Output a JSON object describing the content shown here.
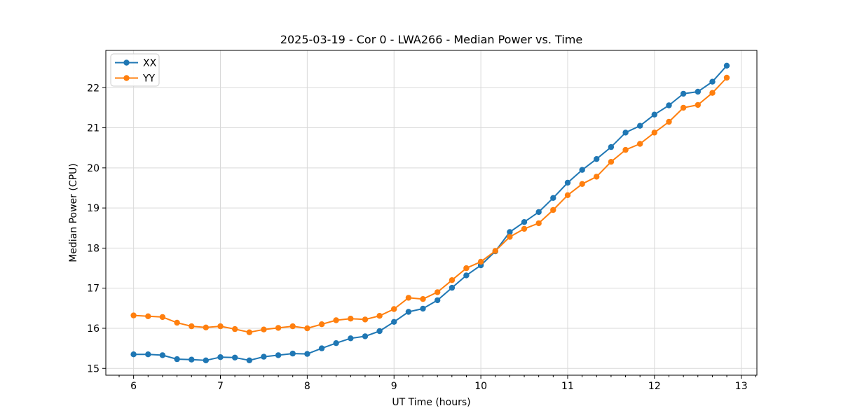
{
  "figure": {
    "background": "#ffffff",
    "frame_color": "#000000",
    "grid_color": "#d9d9d9",
    "tick_color": "#000000"
  },
  "chart_data": {
    "type": "line",
    "title": "2025-03-19 - Cor 0 - LWA266 - Median Power vs. Time",
    "xlabel": "UT Time (hours)",
    "ylabel": "Median Power (CPU)",
    "xlim": [
      5.68,
      13.18
    ],
    "ylim": [
      14.83,
      22.93
    ],
    "xticks": [
      6,
      7,
      8,
      9,
      10,
      11,
      12,
      13
    ],
    "yticks": [
      15,
      16,
      17,
      18,
      19,
      20,
      21,
      22
    ],
    "x_minor_step": 0.166667,
    "grid": true,
    "legend_position": "upper-left",
    "marker": "circle",
    "x": [
      6.0,
      6.167,
      6.333,
      6.5,
      6.667,
      6.833,
      7.0,
      7.167,
      7.333,
      7.5,
      7.667,
      7.833,
      8.0,
      8.167,
      8.333,
      8.5,
      8.667,
      8.833,
      9.0,
      9.167,
      9.333,
      9.5,
      9.667,
      9.833,
      10.0,
      10.167,
      10.333,
      10.5,
      10.667,
      10.833,
      11.0,
      11.167,
      11.333,
      11.5,
      11.667,
      11.833,
      12.0,
      12.167,
      12.333,
      12.5,
      12.667,
      12.833
    ],
    "series": [
      {
        "name": "XX",
        "color": "#1f77b4",
        "values": [
          15.35,
          15.35,
          15.33,
          15.23,
          15.22,
          15.2,
          15.28,
          15.27,
          15.2,
          15.29,
          15.33,
          15.37,
          15.36,
          15.5,
          15.63,
          15.75,
          15.8,
          15.93,
          16.16,
          16.41,
          16.49,
          16.7,
          17.01,
          17.32,
          17.57,
          17.92,
          18.4,
          18.65,
          18.9,
          19.25,
          19.63,
          19.95,
          20.22,
          20.52,
          20.88,
          21.05,
          21.33,
          21.56,
          21.85,
          21.9,
          22.15,
          22.55
        ]
      },
      {
        "name": "YY",
        "color": "#ff7f0e",
        "values": [
          16.32,
          16.3,
          16.28,
          16.14,
          16.05,
          16.02,
          16.05,
          15.98,
          15.9,
          15.97,
          16.01,
          16.05,
          16.0,
          16.1,
          16.2,
          16.24,
          16.22,
          16.31,
          16.48,
          16.76,
          16.73,
          16.9,
          17.2,
          17.5,
          17.66,
          17.93,
          18.28,
          18.48,
          18.62,
          18.95,
          19.32,
          19.6,
          19.78,
          20.15,
          20.45,
          20.6,
          20.88,
          21.15,
          21.5,
          21.57,
          21.87,
          22.25
        ]
      }
    ]
  }
}
